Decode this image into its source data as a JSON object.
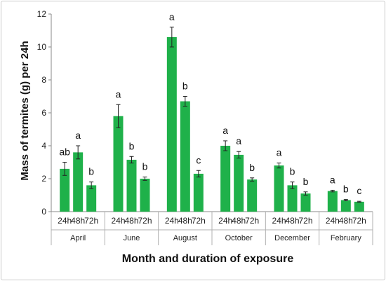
{
  "chart_data": {
    "type": "bar",
    "ylabel": "Mass of termites (g) per 24h",
    "xlabel": "Month and duration of exposure",
    "ylim": [
      0,
      12
    ],
    "yticks": [
      0,
      2,
      4,
      6,
      8,
      10,
      12
    ],
    "grid": false,
    "legend": "none",
    "bar_color": "#1fb14a",
    "groups": [
      {
        "month": "April",
        "bars": [
          {
            "duration": "24h",
            "value": 2.6,
            "error": 0.4,
            "letter": "ab"
          },
          {
            "duration": "48h",
            "value": 3.6,
            "error": 0.4,
            "letter": "a"
          },
          {
            "duration": "72h",
            "value": 1.6,
            "error": 0.2,
            "letter": "b"
          }
        ]
      },
      {
        "month": "June",
        "bars": [
          {
            "duration": "24h",
            "value": 5.8,
            "error": 0.7,
            "letter": "a"
          },
          {
            "duration": "48h",
            "value": 3.15,
            "error": 0.2,
            "letter": "b"
          },
          {
            "duration": "72h",
            "value": 2.0,
            "error": 0.1,
            "letter": "b"
          }
        ]
      },
      {
        "month": "August",
        "bars": [
          {
            "duration": "24h",
            "value": 10.6,
            "error": 0.6,
            "letter": "a"
          },
          {
            "duration": "48h",
            "value": 6.7,
            "error": 0.3,
            "letter": "b"
          },
          {
            "duration": "72h",
            "value": 2.3,
            "error": 0.2,
            "letter": "c"
          }
        ]
      },
      {
        "month": "October",
        "bars": [
          {
            "duration": "24h",
            "value": 4.0,
            "error": 0.3,
            "letter": "a"
          },
          {
            "duration": "48h",
            "value": 3.45,
            "error": 0.2,
            "letter": "a"
          },
          {
            "duration": "72h",
            "value": 1.95,
            "error": 0.1,
            "letter": "b"
          }
        ]
      },
      {
        "month": "December",
        "bars": [
          {
            "duration": "24h",
            "value": 2.8,
            "error": 0.15,
            "letter": "a"
          },
          {
            "duration": "48h",
            "value": 1.6,
            "error": 0.2,
            "letter": "b"
          },
          {
            "duration": "72h",
            "value": 1.1,
            "error": 0.1,
            "letter": "b"
          }
        ]
      },
      {
        "month": "February",
        "bars": [
          {
            "duration": "24h",
            "value": 1.25,
            "error": 0.05,
            "letter": "a"
          },
          {
            "duration": "48h",
            "value": 0.7,
            "error": 0.04,
            "letter": "b"
          },
          {
            "duration": "72h",
            "value": 0.6,
            "error": 0.03,
            "letter": "c"
          }
        ]
      }
    ]
  }
}
